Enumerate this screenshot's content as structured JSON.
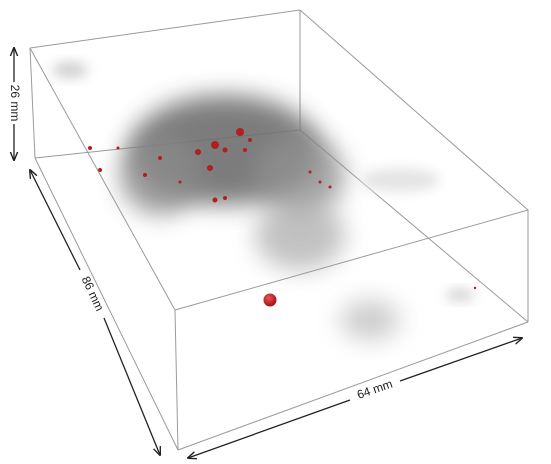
{
  "dimensions": {
    "height": "26 mm",
    "depth": "86 mm",
    "width": "64 mm"
  }
}
